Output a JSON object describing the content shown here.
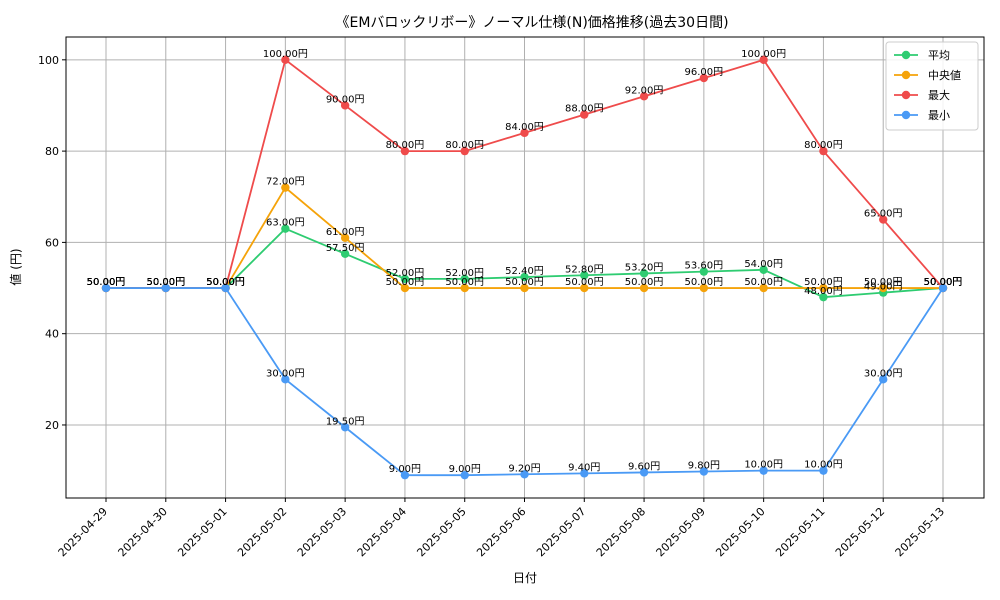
{
  "chart_data": {
    "type": "line",
    "title": "《EMバロックリボー》ノーマル仕様(N)価格推移(過去30日間)",
    "xlabel": "日付",
    "ylabel": "値 (円)",
    "x": [
      "2025-04-29",
      "2025-04-30",
      "2025-05-01",
      "2025-05-02",
      "2025-05-03",
      "2025-05-04",
      "2025-05-05",
      "2025-05-06",
      "2025-05-07",
      "2025-05-08",
      "2025-05-09",
      "2025-05-10",
      "2025-05-11",
      "2025-05-12",
      "2025-05-13"
    ],
    "ylim": [
      4,
      105
    ],
    "yticks": [
      20,
      40,
      60,
      80,
      100
    ],
    "grid": true,
    "legend_position": "top-right",
    "series": [
      {
        "name": "平均",
        "color": "#2ecc71",
        "values": [
          50,
          50,
          50,
          63,
          57.5,
          52,
          52,
          52.4,
          52.8,
          53.2,
          53.6,
          54,
          48,
          49,
          50
        ],
        "labels": [
          "50.00円",
          "50.00円",
          "50.00円",
          "63.00円",
          "57.50円",
          "52.00円",
          "52.00円",
          "52.40円",
          "52.80円",
          "53.20円",
          "53.60円",
          "54.00円",
          "48.00円",
          "49.00円",
          "50.00円"
        ]
      },
      {
        "name": "中央値",
        "color": "#f5a30a",
        "values": [
          50,
          50,
          50,
          72,
          61,
          50,
          50,
          50,
          50,
          50,
          50,
          50,
          50,
          50,
          50
        ],
        "labels": [
          "50.00円",
          "50.00円",
          "50.00円",
          "72.00円",
          "61.00円",
          "50.00円",
          "50.00円",
          "50.00円",
          "50.00円",
          "50.00円",
          "50.00円",
          "50.00円",
          "50.00円",
          "50.00円",
          "50.00円"
        ]
      },
      {
        "name": "最大",
        "color": "#ef4b4b",
        "values": [
          50,
          50,
          50,
          100,
          90,
          80,
          80,
          84,
          88,
          92,
          96,
          100,
          80,
          65,
          50
        ],
        "labels": [
          "50.00円",
          "50.00円",
          "50.00円",
          "100.00円",
          "90.00円",
          "80.00円",
          "80.00円",
          "84.00円",
          "88.00円",
          "92.00円",
          "96.00円",
          "100.00円",
          "80.00円",
          "65.00円",
          "50.00円"
        ]
      },
      {
        "name": "最小",
        "color": "#4a9af5",
        "values": [
          50,
          50,
          50,
          30,
          19.5,
          9,
          9,
          9.2,
          9.4,
          9.6,
          9.8,
          10,
          10,
          30,
          50
        ],
        "labels": [
          "50.00円",
          "50.00円",
          "50.00円",
          "30.00円",
          "19.50円",
          "9.00円",
          "9.00円",
          "9.20円",
          "9.40円",
          "9.60円",
          "9.80円",
          "10.00円",
          "10.00円",
          "30.00円",
          "50.00円"
        ]
      }
    ]
  }
}
